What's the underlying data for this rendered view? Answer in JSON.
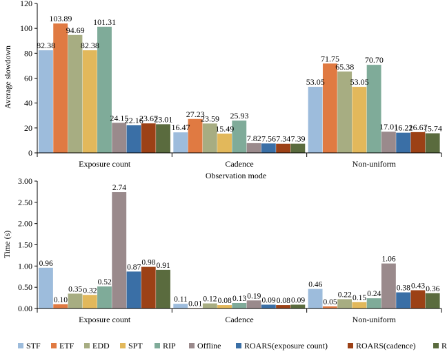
{
  "colors": {
    "STF": "#9dbcdc",
    "ETF": "#e07a42",
    "EDD": "#a7ad82",
    "SPT": "#e2b85b",
    "RIP": "#7fab99",
    "Offline": "#9a8a8c",
    "ROARS(exposure count)": "#3a6fa6",
    "ROARS(cadence)": "#9c4116",
    "ROARS(non-uniform)": "#5a6b3e"
  },
  "chart_data": [
    {
      "type": "bar",
      "title": "",
      "xlabel": "Observation mode",
      "ylabel": "Average slowdown",
      "ylim": [
        0,
        120
      ],
      "yticks": [
        "0",
        "20",
        "40",
        "60",
        "80",
        "100",
        "120"
      ],
      "grid": false,
      "categories": [
        "Exposure count",
        "Cadence",
        "Non-uniform"
      ],
      "series": [
        {
          "name": "STF",
          "values": [
            82.38,
            16.47,
            53.05
          ],
          "labels": [
            "82.38",
            "16.47",
            "53.05"
          ]
        },
        {
          "name": "ETF",
          "values": [
            103.89,
            27.23,
            71.75
          ],
          "labels": [
            "103.89",
            "27.23",
            "71.75"
          ]
        },
        {
          "name": "EDD",
          "values": [
            94.69,
            23.59,
            65.38
          ],
          "labels": [
            "94.69",
            "23.59",
            "65.38"
          ]
        },
        {
          "name": "SPT",
          "values": [
            82.38,
            15.49,
            53.05
          ],
          "labels": [
            "82.38",
            "15.49",
            "53.05"
          ]
        },
        {
          "name": "RIP",
          "values": [
            101.31,
            25.93,
            70.7
          ],
          "labels": [
            "101.31",
            "25.93",
            "70.70"
          ]
        },
        {
          "name": "Offline",
          "values": [
            24.15,
            7.82,
            17.01
          ],
          "labels": [
            "24.15",
            "7.82",
            "17.01"
          ]
        },
        {
          "name": "ROARS(exposure count)",
          "values": [
            22.16,
            7.56,
            16.22
          ],
          "labels": [
            "22.16",
            "7.56",
            "16.22"
          ]
        },
        {
          "name": "ROARS(cadence)",
          "values": [
            23.67,
            7.34,
            16.67
          ],
          "labels": [
            "23.67",
            "7.34",
            "16.67"
          ]
        },
        {
          "name": "ROARS(non-uniform)",
          "values": [
            23.01,
            7.39,
            15.74
          ],
          "labels": [
            "23.01",
            "7.39",
            "15.74"
          ]
        }
      ]
    },
    {
      "type": "bar",
      "title": "",
      "xlabel": "",
      "ylabel": "Time (s)",
      "ylim": [
        0,
        3
      ],
      "yticks": [
        "0.00",
        "0.50",
        "1.00",
        "1.50",
        "2.00",
        "2.50",
        "3.00"
      ],
      "grid": false,
      "legend_position": "bottom",
      "categories": [
        "Exposure count",
        "Cadence",
        "Non-uniform"
      ],
      "series": [
        {
          "name": "STF",
          "values": [
            0.96,
            0.11,
            0.46
          ],
          "labels": [
            "0.96",
            "0.11",
            "0.46"
          ]
        },
        {
          "name": "ETF",
          "values": [
            0.1,
            0.01,
            0.05
          ],
          "labels": [
            "0.10",
            "0.01",
            "0.05"
          ]
        },
        {
          "name": "EDD",
          "values": [
            0.35,
            0.12,
            0.22
          ],
          "labels": [
            "0.35",
            "0.12",
            "0.22"
          ]
        },
        {
          "name": "SPT",
          "values": [
            0.32,
            0.08,
            0.15
          ],
          "labels": [
            "0.32",
            "0.08",
            "0.15"
          ]
        },
        {
          "name": "RIP",
          "values": [
            0.52,
            0.13,
            0.24
          ],
          "labels": [
            "0.52",
            "0.13",
            "0.24"
          ]
        },
        {
          "name": "Offline",
          "values": [
            2.74,
            0.19,
            1.06
          ],
          "labels": [
            "2.74",
            "0.19",
            "1.06"
          ]
        },
        {
          "name": "ROARS(exposure count)",
          "values": [
            0.87,
            0.09,
            0.38
          ],
          "labels": [
            "0.87",
            "0.09",
            "0.38"
          ]
        },
        {
          "name": "ROARS(cadence)",
          "values": [
            0.98,
            0.08,
            0.43
          ],
          "labels": [
            "0.98",
            "0.08",
            "0.43"
          ]
        },
        {
          "name": "ROARS(non-uniform)",
          "values": [
            0.91,
            0.09,
            0.36
          ],
          "labels": [
            "0.91",
            "0.09",
            "0.36"
          ]
        }
      ]
    }
  ]
}
